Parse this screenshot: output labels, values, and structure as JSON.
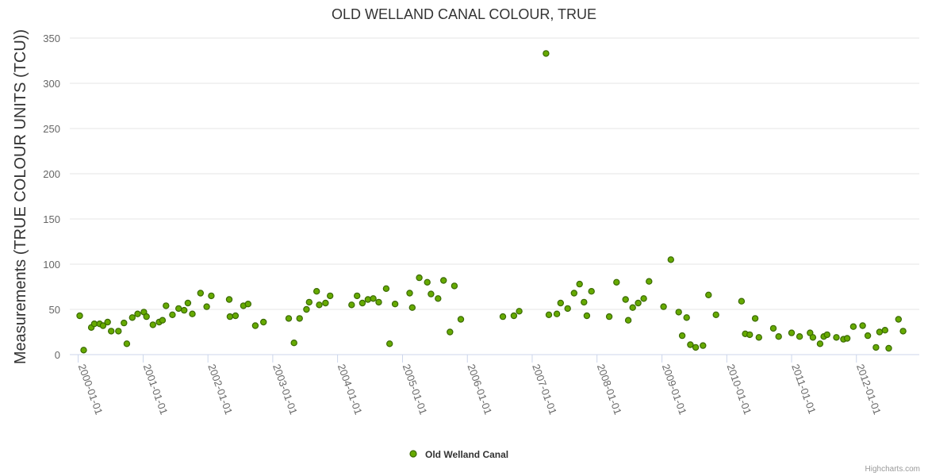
{
  "chart_data": {
    "type": "scatter",
    "title": "OLD WELLAND CANAL COLOUR, TRUE",
    "xlabel": "",
    "ylabel": "Measurements (TRUE COLOUR UNITS (TCU))",
    "ylim": [
      0,
      350
    ],
    "yticks": [
      0,
      50,
      100,
      150,
      200,
      250,
      300,
      350
    ],
    "xlim": [
      "1999-11-15",
      "2012-12-20"
    ],
    "xtick_labels": [
      "2000-01-01",
      "2001-01-01",
      "2002-01-01",
      "2003-01-01",
      "2004-01-01",
      "2005-01-01",
      "2006-01-01",
      "2007-01-01",
      "2008-01-01",
      "2009-01-01",
      "2010-01-01",
      "2011-01-01",
      "2012-01-01"
    ],
    "grid": true,
    "legend": "bottom-center",
    "series": [
      {
        "name": "Old Welland Canal",
        "color": "#66aa00",
        "border_color": "#3a6a00",
        "points": [
          [
            "2000-01-10",
            43
          ],
          [
            "2000-02-01",
            5
          ],
          [
            "2000-03-15",
            30
          ],
          [
            "2000-04-01",
            34
          ],
          [
            "2000-05-01",
            34
          ],
          [
            "2000-05-20",
            32
          ],
          [
            "2000-06-15",
            36
          ],
          [
            "2000-07-05",
            26
          ],
          [
            "2000-08-15",
            26
          ],
          [
            "2000-09-15",
            35
          ],
          [
            "2000-10-01",
            12
          ],
          [
            "2000-11-01",
            41
          ],
          [
            "2000-12-01",
            45
          ],
          [
            "2001-01-05",
            47
          ],
          [
            "2001-01-20",
            42
          ],
          [
            "2001-02-25",
            33
          ],
          [
            "2001-04-01",
            36
          ],
          [
            "2001-04-20",
            38
          ],
          [
            "2001-05-10",
            54
          ],
          [
            "2001-06-15",
            44
          ],
          [
            "2001-07-20",
            51
          ],
          [
            "2001-08-20",
            49
          ],
          [
            "2001-09-10",
            57
          ],
          [
            "2001-10-05",
            45
          ],
          [
            "2001-11-20",
            68
          ],
          [
            "2001-12-25",
            53
          ],
          [
            "2002-01-20",
            65
          ],
          [
            "2002-05-01",
            61
          ],
          [
            "2002-05-05",
            42
          ],
          [
            "2002-06-05",
            43
          ],
          [
            "2002-07-20",
            54
          ],
          [
            "2002-08-15",
            56
          ],
          [
            "2002-09-25",
            32
          ],
          [
            "2002-11-10",
            36
          ],
          [
            "2003-04-01",
            40
          ],
          [
            "2003-05-01",
            13
          ],
          [
            "2003-06-01",
            40
          ],
          [
            "2003-07-10",
            50
          ],
          [
            "2003-07-25",
            58
          ],
          [
            "2003-09-05",
            70
          ],
          [
            "2003-09-20",
            55
          ],
          [
            "2003-10-25",
            57
          ],
          [
            "2003-11-20",
            65
          ],
          [
            "2004-03-20",
            55
          ],
          [
            "2004-04-20",
            65
          ],
          [
            "2004-05-20",
            57
          ],
          [
            "2004-06-20",
            61
          ],
          [
            "2004-07-20",
            62
          ],
          [
            "2004-08-20",
            58
          ],
          [
            "2004-10-01",
            73
          ],
          [
            "2004-10-20",
            12
          ],
          [
            "2004-11-20",
            56
          ],
          [
            "2005-02-10",
            68
          ],
          [
            "2005-02-25",
            52
          ],
          [
            "2005-04-05",
            85
          ],
          [
            "2005-05-20",
            80
          ],
          [
            "2005-06-10",
            67
          ],
          [
            "2005-07-20",
            62
          ],
          [
            "2005-08-20",
            82
          ],
          [
            "2005-09-25",
            25
          ],
          [
            "2005-10-20",
            76
          ],
          [
            "2005-11-25",
            39
          ],
          [
            "2006-07-20",
            42
          ],
          [
            "2006-09-20",
            43
          ],
          [
            "2006-10-20",
            48
          ],
          [
            "2007-03-20",
            333
          ],
          [
            "2007-04-05",
            44
          ],
          [
            "2007-05-20",
            45
          ],
          [
            "2007-06-10",
            57
          ],
          [
            "2007-07-20",
            51
          ],
          [
            "2007-08-25",
            68
          ],
          [
            "2007-09-25",
            78
          ],
          [
            "2007-10-20",
            58
          ],
          [
            "2007-11-05",
            43
          ],
          [
            "2007-12-01",
            70
          ],
          [
            "2008-03-10",
            42
          ],
          [
            "2008-04-20",
            80
          ],
          [
            "2008-06-10",
            61
          ],
          [
            "2008-06-25",
            38
          ],
          [
            "2008-07-20",
            52
          ],
          [
            "2008-08-20",
            57
          ],
          [
            "2008-09-20",
            62
          ],
          [
            "2008-10-20",
            81
          ],
          [
            "2009-01-10",
            53
          ],
          [
            "2009-02-20",
            105
          ],
          [
            "2009-04-05",
            47
          ],
          [
            "2009-04-25",
            21
          ],
          [
            "2009-05-20",
            41
          ],
          [
            "2009-06-10",
            11
          ],
          [
            "2009-07-10",
            8
          ],
          [
            "2009-08-20",
            10
          ],
          [
            "2009-09-20",
            66
          ],
          [
            "2009-11-01",
            44
          ],
          [
            "2010-03-25",
            59
          ],
          [
            "2010-04-15",
            23
          ],
          [
            "2010-05-10",
            22
          ],
          [
            "2010-06-10",
            40
          ],
          [
            "2010-07-01",
            19
          ],
          [
            "2010-09-20",
            29
          ],
          [
            "2010-10-20",
            20
          ],
          [
            "2011-01-01",
            24
          ],
          [
            "2011-02-15",
            20
          ],
          [
            "2011-04-15",
            24
          ],
          [
            "2011-05-01",
            19
          ],
          [
            "2011-06-10",
            12
          ],
          [
            "2011-07-01",
            20
          ],
          [
            "2011-07-20",
            22
          ],
          [
            "2011-09-10",
            19
          ],
          [
            "2011-10-20",
            17
          ],
          [
            "2011-11-10",
            18
          ],
          [
            "2011-12-15",
            31
          ],
          [
            "2012-02-05",
            32
          ],
          [
            "2012-03-05",
            21
          ],
          [
            "2012-04-20",
            8
          ],
          [
            "2012-05-10",
            25
          ],
          [
            "2012-06-10",
            27
          ],
          [
            "2012-07-01",
            7
          ],
          [
            "2012-08-25",
            39
          ],
          [
            "2012-09-20",
            26
          ]
        ]
      }
    ],
    "credits": "Highcharts.com"
  }
}
